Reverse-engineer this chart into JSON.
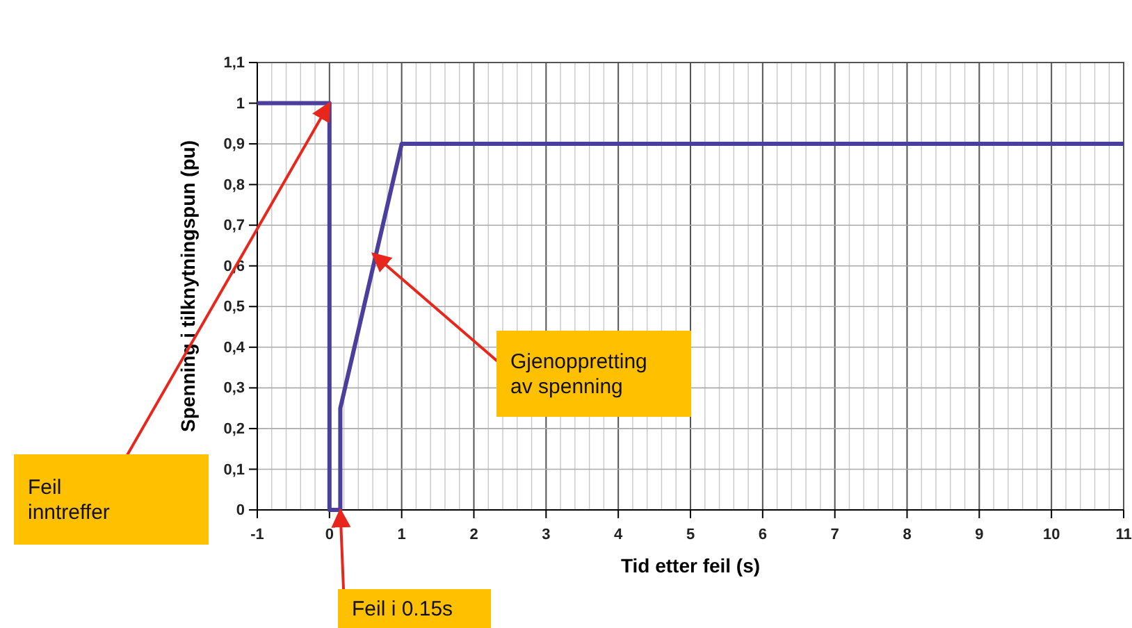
{
  "chart_data": {
    "type": "line",
    "xlabel": "Tid etter feil (s)",
    "ylabel": "Spenning i tilknytningspun (pu)",
    "x": [
      -1,
      0,
      0,
      0.15,
      0.15,
      1,
      11
    ],
    "series": [
      {
        "color": "#4a3f9c",
        "values": [
          1,
          1,
          0,
          0,
          0.25,
          0.9,
          0.9
        ]
      }
    ],
    "xlim": [
      -1,
      11
    ],
    "xticks": [
      -1,
      0,
      1,
      2,
      3,
      4,
      5,
      6,
      7,
      8,
      9,
      10,
      11
    ],
    "ylim": [
      0,
      1.1
    ],
    "yticks": [
      {
        "value": 0,
        "label": "0"
      },
      {
        "value": 0.1,
        "label": "0,1"
      },
      {
        "value": 0.2,
        "label": "0,2"
      },
      {
        "value": 0.3,
        "label": "0,3"
      },
      {
        "value": 0.4,
        "label": "0,4"
      },
      {
        "value": 0.5,
        "label": "0,5"
      },
      {
        "value": 0.6,
        "label": "0,6"
      },
      {
        "value": 0.7,
        "label": "0,7"
      },
      {
        "value": 0.8,
        "label": "0,8"
      },
      {
        "value": 0.9,
        "label": "0,9"
      },
      {
        "value": 1,
        "label": "1"
      },
      {
        "value": 1.1,
        "label": "1,1"
      }
    ],
    "grid": true,
    "marker": "none",
    "line_style": "solid",
    "annotations": [
      {
        "text": "Feil\ninntreffer",
        "x": 0,
        "y": 1
      },
      {
        "text": "Feil i 0.15s",
        "x": 0.15,
        "y": 0
      },
      {
        "text": "Gjenoppretting\nav spenning",
        "x": 0.6,
        "y": 0.63
      }
    ]
  }
}
